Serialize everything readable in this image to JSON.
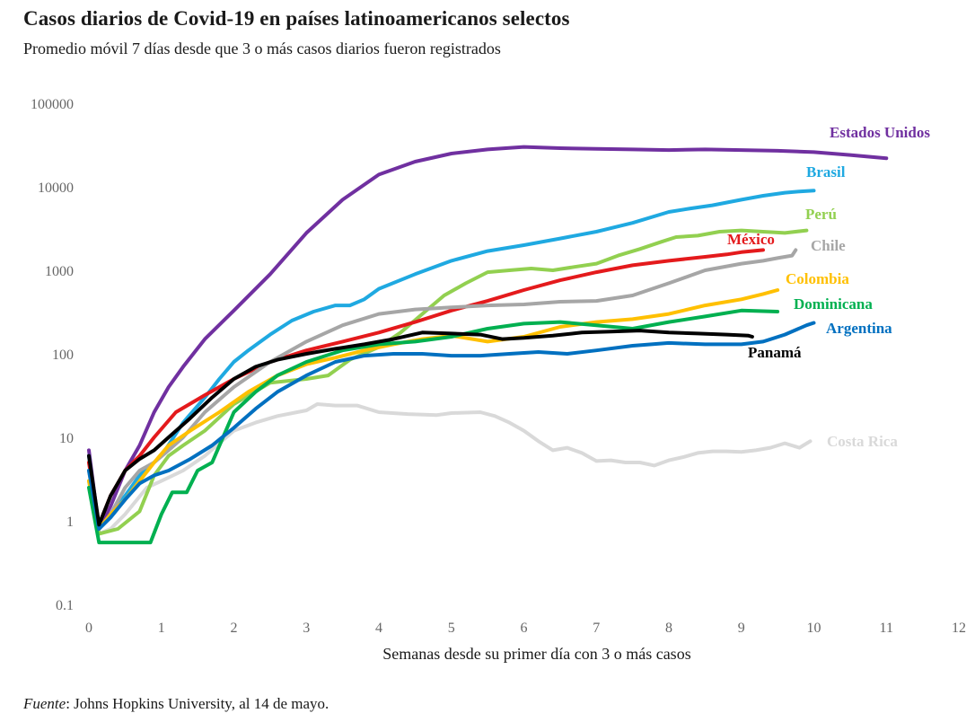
{
  "header": {
    "title": "Casos diarios de Covid-19 en países latinoamericanos selectos",
    "subtitle": "Promedio móvil 7 días desde que 3 o más casos diarios fueron registrados"
  },
  "footer": {
    "source_label": "Fuente",
    "source_text": ": Johns Hopkins University, al 14 de mayo."
  },
  "chart_data": {
    "type": "line",
    "title": "Casos diarios de Covid-19 en países latinoamericanos selectos",
    "subtitle": "Promedio móvil 7 días desde que 3 o más casos diarios fueron registrados",
    "xlabel": "Semanas desde su primer día con 3 o más casos",
    "ylabel": "",
    "yscale": "log",
    "xlim": [
      0,
      12
    ],
    "ylim": [
      0.1,
      100000
    ],
    "xticks": [
      "0",
      "1",
      "2",
      "3",
      "4",
      "5",
      "6",
      "7",
      "8",
      "9",
      "10",
      "11",
      "12"
    ],
    "yticks": [
      "0.1",
      "1",
      "10",
      "100",
      "1000",
      "10000",
      "100000"
    ],
    "grid": false,
    "legend": "direct labels at line ends",
    "series": [
      {
        "name": "Costa Rica",
        "color": "#d9d9d9",
        "x": [
          0,
          0.14,
          0.3,
          0.5,
          0.8,
          1.0,
          1.3,
          1.6,
          2.0,
          2.3,
          2.6,
          3.0,
          3.15,
          3.4,
          3.7,
          4.0,
          4.4,
          4.8,
          5.0,
          5.4,
          5.6,
          5.8,
          6.0,
          6.2,
          6.4,
          6.6,
          6.8,
          7.0,
          7.2,
          7.4,
          7.6,
          7.8,
          8.0,
          8.2,
          8.4,
          8.6,
          8.8,
          9.0,
          9.2,
          9.4,
          9.6,
          9.8,
          9.95
        ],
        "y": [
          5,
          0.7,
          0.8,
          1.2,
          2.5,
          3,
          4,
          6,
          12,
          15,
          18,
          21,
          25,
          24,
          24,
          20,
          19,
          18.5,
          19.5,
          20,
          18,
          15,
          12,
          9,
          7,
          7.5,
          6.5,
          5.2,
          5.3,
          5,
          5,
          4.6,
          5.3,
          5.8,
          6.5,
          6.8,
          6.8,
          6.7,
          7,
          7.5,
          8.5,
          7.5,
          9
        ]
      },
      {
        "name": "Estados Unidos",
        "color": "#7030a0",
        "x": [
          0,
          0.14,
          0.3,
          0.5,
          0.7,
          0.9,
          1.1,
          1.3,
          1.6,
          2.0,
          2.5,
          3.0,
          3.5,
          4.0,
          4.5,
          5.0,
          5.5,
          6.0,
          6.5,
          7.0,
          7.5,
          8.0,
          8.5,
          9.0,
          9.5,
          10.0,
          10.5,
          11.0
        ],
        "y": [
          7,
          0.8,
          1.5,
          4,
          8,
          20,
          40,
          70,
          150,
          330,
          900,
          2800,
          7000,
          14000,
          20000,
          25000,
          28000,
          30000,
          29000,
          28500,
          28000,
          27500,
          28000,
          27500,
          27000,
          26000,
          24000,
          22000
        ]
      },
      {
        "name": "Brasil",
        "color": "#1fa9e1",
        "x": [
          0,
          0.14,
          0.3,
          0.5,
          0.7,
          1.0,
          1.3,
          1.6,
          1.8,
          2.0,
          2.2,
          2.5,
          2.8,
          3.1,
          3.4,
          3.6,
          3.8,
          4.0,
          4.5,
          5.0,
          5.5,
          6.0,
          6.5,
          7.0,
          7.5,
          8.0,
          8.3,
          8.6,
          9.0,
          9.3,
          9.6,
          9.8,
          10.0
        ],
        "y": [
          6,
          0.8,
          1.2,
          2,
          3.5,
          6,
          15,
          30,
          50,
          80,
          110,
          170,
          250,
          320,
          380,
          380,
          450,
          600,
          900,
          1300,
          1700,
          2000,
          2400,
          2900,
          3700,
          5000,
          5500,
          6000,
          7000,
          7800,
          8500,
          8800,
          9000
        ]
      },
      {
        "name": "Perú",
        "color": "#92d050",
        "x": [
          0,
          0.14,
          0.4,
          0.7,
          0.9,
          1.1,
          1.3,
          1.6,
          2.0,
          2.5,
          3.0,
          3.3,
          3.6,
          4.0,
          4.3,
          4.6,
          4.9,
          5.2,
          5.5,
          5.8,
          6.1,
          6.4,
          6.7,
          7.0,
          7.3,
          7.6,
          7.9,
          8.1,
          8.4,
          8.7,
          9.0,
          9.3,
          9.6,
          9.9
        ],
        "y": [
          3,
          0.7,
          0.8,
          1.3,
          3.5,
          6,
          8,
          12,
          25,
          45,
          50,
          55,
          85,
          120,
          180,
          300,
          500,
          700,
          950,
          1000,
          1050,
          1000,
          1100,
          1200,
          1500,
          1800,
          2200,
          2500,
          2600,
          2900,
          3000,
          2900,
          2800,
          3000
        ]
      },
      {
        "name": "México",
        "color": "#e41a1c",
        "x": [
          0,
          0.14,
          0.3,
          0.5,
          0.7,
          0.9,
          1.2,
          1.6,
          2.0,
          2.5,
          3.0,
          3.5,
          4.0,
          4.5,
          5.0,
          5.5,
          6.0,
          6.5,
          7.0,
          7.5,
          8.0,
          8.5,
          8.8,
          9.0,
          9.3
        ],
        "y": [
          5,
          0.9,
          2,
          4,
          6,
          10,
          20,
          32,
          50,
          80,
          110,
          140,
          180,
          240,
          330,
          430,
          580,
          760,
          950,
          1150,
          1300,
          1450,
          1550,
          1650,
          1750
        ]
      },
      {
        "name": "Chile",
        "color": "#a6a6a6",
        "x": [
          0,
          0.14,
          0.3,
          0.5,
          0.7,
          0.9,
          1.1,
          1.3,
          1.6,
          2.0,
          2.5,
          3.0,
          3.5,
          4.0,
          4.5,
          5.0,
          5.5,
          6.0,
          6.5,
          7.0,
          7.5,
          8.0,
          8.5,
          9.0,
          9.3,
          9.5,
          9.7,
          9.75
        ],
        "y": [
          4,
          0.8,
          1.2,
          2.5,
          4,
          5,
          7,
          10,
          20,
          40,
          80,
          140,
          220,
          300,
          340,
          360,
          380,
          390,
          420,
          430,
          500,
          700,
          1000,
          1200,
          1300,
          1400,
          1500,
          1750
        ]
      },
      {
        "name": "Colombia",
        "color": "#ffc000",
        "x": [
          0,
          0.14,
          0.3,
          0.5,
          0.7,
          0.9,
          1.1,
          1.4,
          1.8,
          2.2,
          2.6,
          3.0,
          3.4,
          3.8,
          4.2,
          4.6,
          5.0,
          5.5,
          6.0,
          6.5,
          7.0,
          7.5,
          8.0,
          8.5,
          9.0,
          9.3,
          9.5
        ],
        "y": [
          3,
          0.8,
          1.2,
          1.8,
          3,
          5,
          8,
          12,
          20,
          35,
          55,
          75,
          90,
          110,
          130,
          150,
          165,
          140,
          160,
          210,
          240,
          260,
          300,
          380,
          450,
          520,
          580
        ]
      },
      {
        "name": "Dominicana",
        "color": "#00b050",
        "x": [
          0,
          0.14,
          0.4,
          0.7,
          0.85,
          1.0,
          1.15,
          1.35,
          1.5,
          1.7,
          2.0,
          2.3,
          2.6,
          3.0,
          3.5,
          4.0,
          4.5,
          5.0,
          5.5,
          6.0,
          6.5,
          7.0,
          7.5,
          8.0,
          8.5,
          9.0,
          9.5
        ],
        "y": [
          2.5,
          0.55,
          0.55,
          0.55,
          0.55,
          1.2,
          2.2,
          2.2,
          4,
          5,
          20,
          35,
          55,
          80,
          110,
          130,
          140,
          160,
          200,
          230,
          240,
          220,
          200,
          240,
          280,
          330,
          320
        ]
      },
      {
        "name": "Argentina",
        "color": "#0070c0",
        "x": [
          0,
          0.14,
          0.3,
          0.5,
          0.7,
          0.9,
          1.1,
          1.4,
          1.7,
          2.0,
          2.3,
          2.6,
          3.0,
          3.4,
          3.8,
          4.2,
          4.6,
          5.0,
          5.4,
          5.8,
          6.2,
          6.6,
          7.0,
          7.5,
          8.0,
          8.5,
          9.0,
          9.3,
          9.6,
          9.9,
          10.0
        ],
        "y": [
          4,
          0.8,
          1.1,
          1.8,
          2.8,
          3.5,
          4,
          5.5,
          8,
          13,
          22,
          35,
          55,
          80,
          95,
          100,
          100,
          95,
          95,
          100,
          105,
          100,
          110,
          125,
          135,
          130,
          130,
          140,
          170,
          220,
          235
        ]
      },
      {
        "name": "Panamá",
        "color": "#000000",
        "x": [
          0,
          0.14,
          0.3,
          0.5,
          0.7,
          0.9,
          1.1,
          1.4,
          1.7,
          2.0,
          2.3,
          2.6,
          3.0,
          3.4,
          3.8,
          4.2,
          4.6,
          5.0,
          5.4,
          5.7,
          6.0,
          6.4,
          6.8,
          7.2,
          7.6,
          8.0,
          8.4,
          8.8,
          9.1,
          9.15
        ],
        "y": [
          6,
          0.9,
          2,
          4,
          5.5,
          7,
          10,
          17,
          30,
          50,
          70,
          85,
          100,
          115,
          130,
          150,
          180,
          175,
          170,
          150,
          155,
          165,
          180,
          185,
          190,
          180,
          175,
          170,
          165,
          160
        ]
      }
    ]
  }
}
